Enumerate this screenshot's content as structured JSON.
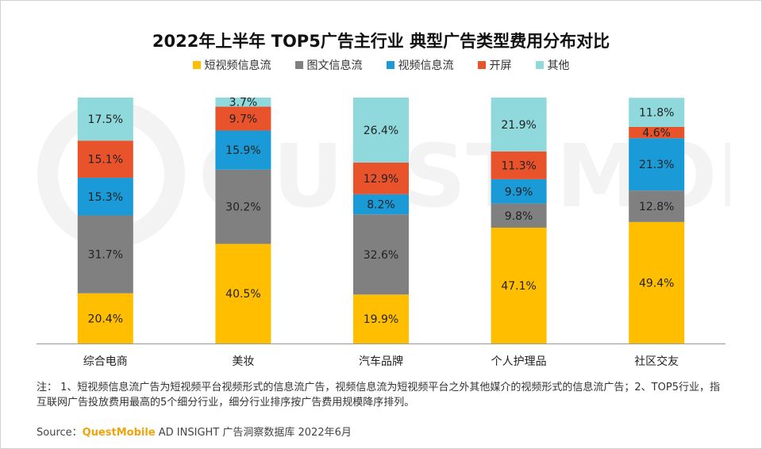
{
  "chart_data": {
    "type": "bar",
    "stacked": true,
    "title": "2022年上半年 TOP5广告主行业 典型广告类型费用分布对比",
    "categories": [
      "综合电商",
      "美妆",
      "汽车品牌",
      "个人护理品",
      "社区交友"
    ],
    "series": [
      {
        "name": "短视频信息流",
        "color": "#ffbf00",
        "values": [
          20.4,
          40.5,
          19.9,
          47.1,
          49.4
        ],
        "labels": [
          "20.4%",
          "40.5%",
          "19.9%",
          "47.1%",
          "49.4%"
        ]
      },
      {
        "name": "图文信息流",
        "color": "#808080",
        "values": [
          31.7,
          30.2,
          32.6,
          9.8,
          12.8
        ],
        "labels": [
          "31.7%",
          "30.2%",
          "32.6%",
          "9.8%",
          "12.8%"
        ]
      },
      {
        "name": "视频信息流",
        "color": "#1a9bd7",
        "values": [
          15.3,
          15.9,
          8.2,
          9.9,
          21.3
        ],
        "labels": [
          "15.3%",
          "15.9%",
          "8.2%",
          "9.9%",
          "21.3%"
        ]
      },
      {
        "name": "开屏",
        "color": "#e8532b",
        "values": [
          15.1,
          9.7,
          12.9,
          11.3,
          4.6
        ],
        "labels": [
          "15.1%",
          "9.7%",
          "12.9%",
          "11.3%",
          "4.6%"
        ]
      },
      {
        "name": "其他",
        "color": "#8fd9dc",
        "values": [
          17.5,
          3.7,
          26.4,
          21.9,
          11.8
        ],
        "labels": [
          "17.5%",
          "3.7%",
          "26.4%",
          "21.9%",
          "11.8%"
        ]
      }
    ],
    "ylim": [
      0,
      100
    ],
    "grid": false,
    "legend_position": "top-center"
  },
  "note": "注： 1、短视频信息流广告为短视频平台视频形式的信息流广告，视频信息流为短视频平台之外其他媒介的视频形式的信息流广告；2、TOP5行业，指互联网广告投放费用最高的5个细分行业，细分行业排序按广告费用规模降序排列。",
  "source": {
    "prefix": "Source：",
    "brand": "QuestMobile",
    "rest": " AD INSIGHT 广告洞察数据库 2022年6月"
  },
  "watermark": "QUEST MOBILE"
}
